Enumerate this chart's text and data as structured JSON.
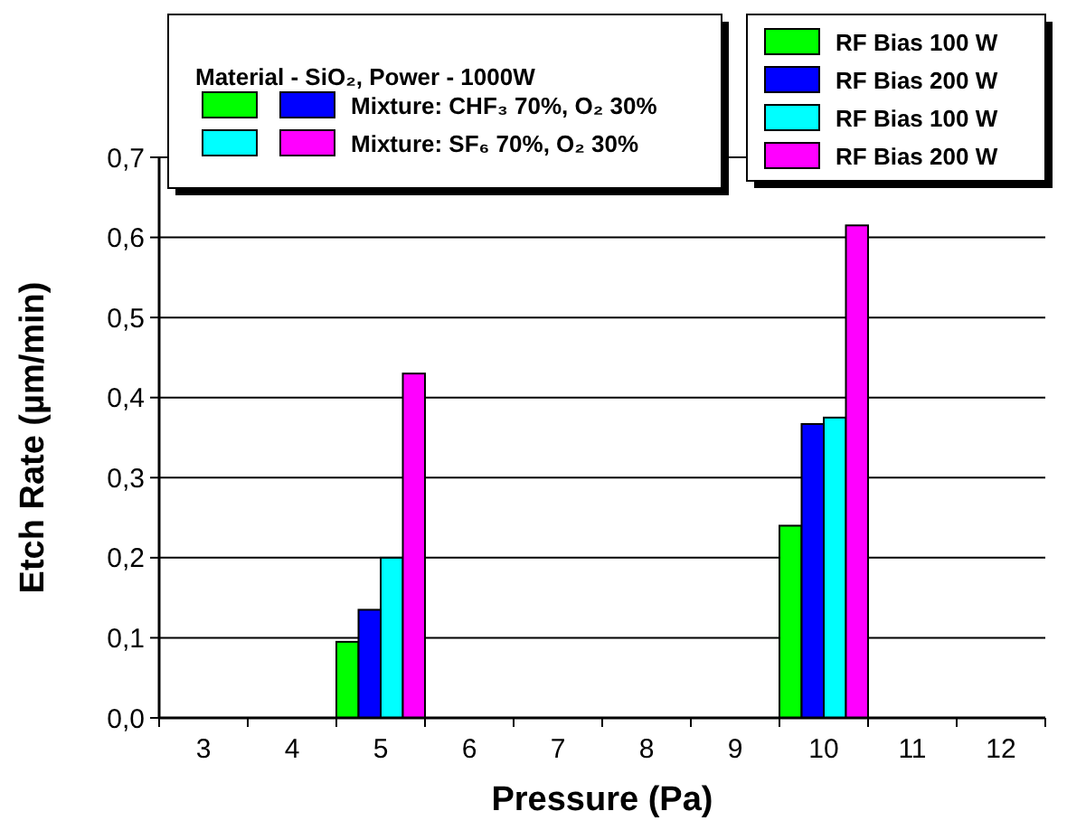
{
  "chart_data": {
    "type": "bar",
    "xlabel": "Pressure (Pa)",
    "ylabel": "Etch Rate (µm/min)",
    "categories": [
      "3",
      "4",
      "5",
      "6",
      "7",
      "8",
      "9",
      "10",
      "11",
      "12"
    ],
    "series": [
      {
        "name": "RF Bias 100 W",
        "color": "#00ff00",
        "values": [
          null,
          null,
          0.095,
          null,
          null,
          null,
          null,
          0.24,
          null,
          null
        ]
      },
      {
        "name": "RF Bias 200 W",
        "color": "#0000ff",
        "values": [
          null,
          null,
          0.135,
          null,
          null,
          null,
          null,
          0.367,
          null,
          null
        ]
      },
      {
        "name": "RF Bias 100 W",
        "color": "#00ffff",
        "values": [
          null,
          null,
          0.2,
          null,
          null,
          null,
          null,
          0.375,
          null,
          null
        ]
      },
      {
        "name": "RF Bias 200 W",
        "color": "#ff00ff",
        "values": [
          null,
          null,
          0.43,
          null,
          null,
          null,
          null,
          0.615,
          null,
          null
        ]
      }
    ],
    "ylim": [
      0,
      0.7
    ],
    "yticks": [
      {
        "value": 0,
        "label": "0,0"
      },
      {
        "value": 0.1,
        "label": "0,1"
      },
      {
        "value": 0.2,
        "label": "0,2"
      },
      {
        "value": 0.3,
        "label": "0,3"
      },
      {
        "value": 0.4,
        "label": "0,4"
      },
      {
        "value": 0.5,
        "label": "0,5"
      },
      {
        "value": 0.6,
        "label": "0,6"
      },
      {
        "value": 0.7,
        "label": "0,7"
      }
    ],
    "grid": "y",
    "legend": "top right",
    "annotations": [
      "Material - SiO₂, Power - 1000W",
      "Mixture: CHF₃ 70%, O₂ 30%",
      "Mixture: SF₆ 70%, O₂ 30%"
    ]
  }
}
